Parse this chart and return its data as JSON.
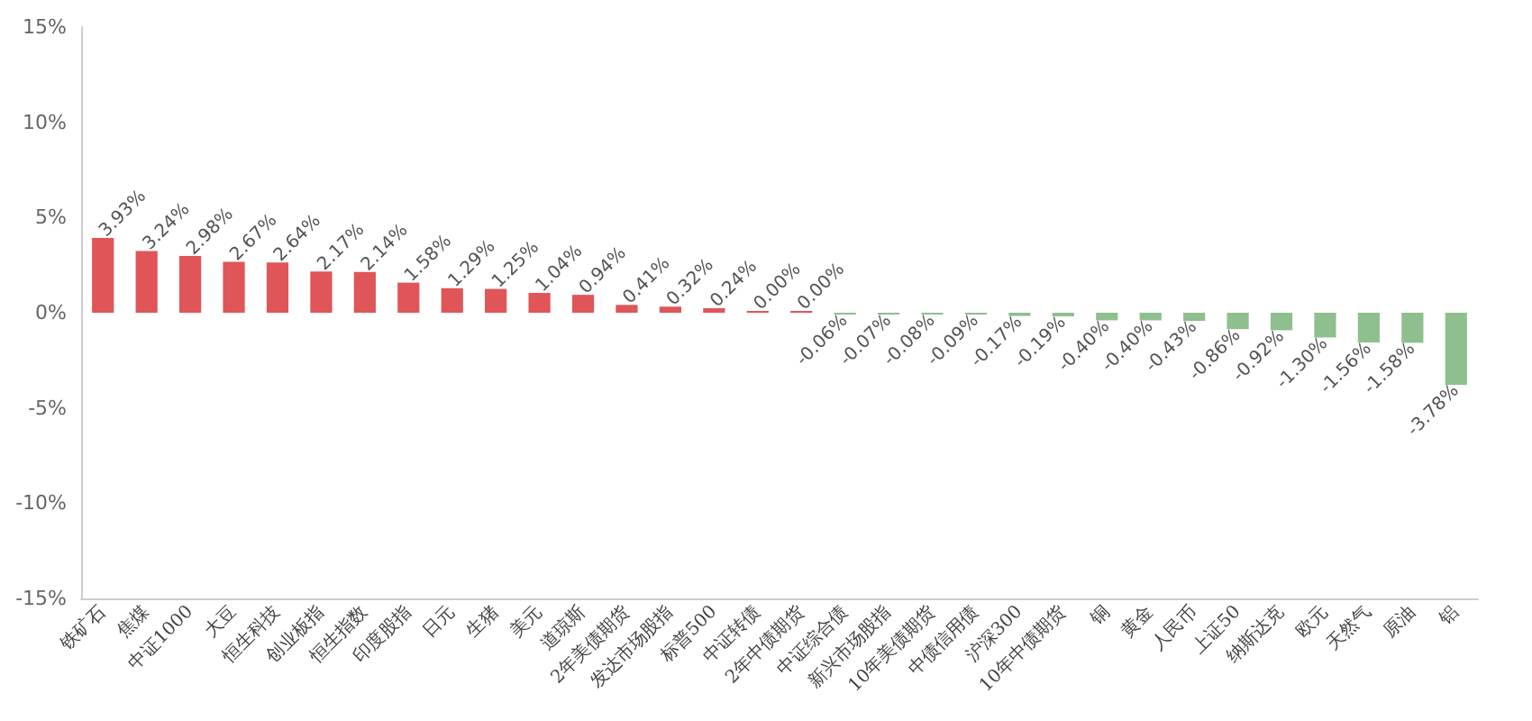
{
  "chart_data": {
    "type": "bar",
    "categories": [
      "铁矿石",
      "焦煤",
      "中证1000",
      "大豆",
      "恒生科技",
      "创业板指",
      "恒生指数",
      "印度股指",
      "日元",
      "生猪",
      "美元",
      "道琼斯",
      "2年美债期货",
      "发达市场股指",
      "标普500",
      "中证转债",
      "2年中债期货",
      "中证综合债",
      "新兴市场股指",
      "10年美债期货",
      "中债信用债",
      "沪深300",
      "10年中债期货",
      "铜",
      "黄金",
      "人民币",
      "上证50",
      "纳斯达克",
      "欧元",
      "天然气",
      "原油",
      "铝"
    ],
    "values": [
      3.93,
      3.24,
      2.98,
      2.67,
      2.64,
      2.17,
      2.14,
      1.58,
      1.29,
      1.25,
      1.04,
      0.94,
      0.41,
      0.32,
      0.24,
      0.0,
      0.0,
      -0.06,
      -0.07,
      -0.08,
      -0.09,
      -0.17,
      -0.19,
      -0.4,
      -0.4,
      -0.43,
      -0.86,
      -0.92,
      -1.3,
      -1.56,
      -1.58,
      -3.78
    ],
    "value_labels": [
      "3.93%",
      "3.24%",
      "2.98%",
      "2.67%",
      "2.64%",
      "2.17%",
      "2.14%",
      "1.58%",
      "1.29%",
      "1.25%",
      "1.04%",
      "0.94%",
      "0.41%",
      "0.32%",
      "0.24%",
      "0.00%",
      "0.00%",
      "-0.06%",
      "-0.07%",
      "-0.08%",
      "-0.09%",
      "-0.17%",
      "-0.19%",
      "-0.40%",
      "-0.40%",
      "-0.43%",
      "-0.86%",
      "-0.92%",
      "-1.30%",
      "-1.56%",
      "-1.58%",
      "-3.78%"
    ],
    "colors": [
      "#e05558",
      "#e05558",
      "#e05558",
      "#e05558",
      "#e05558",
      "#e05558",
      "#e05558",
      "#e05558",
      "#e05558",
      "#e05558",
      "#e05558",
      "#e05558",
      "#e05558",
      "#e05558",
      "#e05558",
      "#e05558",
      "#e05558",
      "#8fbf8f",
      "#8fbf8f",
      "#8fbf8f",
      "#8fbf8f",
      "#8fbf8f",
      "#8fbf8f",
      "#8fbf8f",
      "#8fbf8f",
      "#8fbf8f",
      "#8fbf8f",
      "#8fbf8f",
      "#8fbf8f",
      "#8fbf8f",
      "#8fbf8f",
      "#8fbf8f"
    ],
    "ylim": [
      -15,
      15
    ],
    "yticks": [
      {
        "value": -15,
        "label": "-15%"
      },
      {
        "value": -10,
        "label": "-10%"
      },
      {
        "value": -5,
        "label": "-5%"
      },
      {
        "value": 0,
        "label": "0%"
      },
      {
        "value": 5,
        "label": "5%"
      },
      {
        "value": 10,
        "label": "10%"
      },
      {
        "value": 15,
        "label": "15%"
      }
    ],
    "grid": false
  }
}
